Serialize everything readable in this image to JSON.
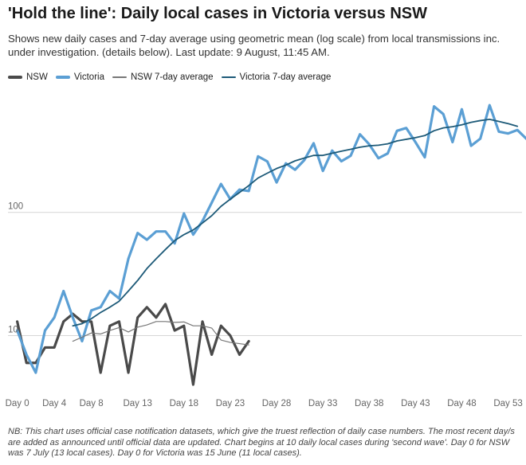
{
  "title": "'Hold the line': Daily local cases in Victoria versus NSW",
  "subtitle": "Shows new daily cases and 7-day average using geometric mean (log scale) from local transmissions inc. under investigation. (details below). Last update: 9 August, 11:45 AM.",
  "legend": {
    "nsw": "NSW",
    "victoria": "Victoria",
    "nsw_avg": "NSW 7-day average",
    "vic_avg": "Victoria 7-day average"
  },
  "colors": {
    "nsw": "#4a4a4a",
    "victoria": "#5b9fd4",
    "nsw_avg": "#777777",
    "vic_avg": "#1d5a78",
    "grid": "#d6d6d6"
  },
  "note": "NB: This chart uses official case notification datasets, which give the truest reflection of daily case numbers. The most recent day/s are added as announced until official data are updated. Chart begins at 10 daily local cases during 'second wave'. Day 0 for NSW was 7 July (13 local cases). Day 0 for Victoria was 15 June (11 local cases).",
  "chart_data": {
    "type": "line",
    "title": "'Hold the line': Daily local cases in Victoria versus NSW",
    "xlabel": "",
    "ylabel": "",
    "y_scale": "log",
    "ylim": [
      3.5,
      1000
    ],
    "xlim": [
      -1,
      54.5
    ],
    "y_ticks": [
      10,
      100
    ],
    "x_ticks": [
      {
        "value": 0,
        "label": "Day 0"
      },
      {
        "value": 4,
        "label": "Day 4"
      },
      {
        "value": 8,
        "label": "Day 8"
      },
      {
        "value": 13,
        "label": "Day 13"
      },
      {
        "value": 18,
        "label": "Day 18"
      },
      {
        "value": 23,
        "label": "Day 23"
      },
      {
        "value": 28,
        "label": "Day 28"
      },
      {
        "value": 33,
        "label": "Day 33"
      },
      {
        "value": 38,
        "label": "Day 38"
      },
      {
        "value": 43,
        "label": "Day 43"
      },
      {
        "value": 48,
        "label": "Day 48"
      },
      {
        "value": 53,
        "label": "Day 53"
      }
    ],
    "grid": "horizontal",
    "legend_position": "top-left",
    "series": [
      {
        "name": "NSW",
        "key": "nsw",
        "width": 3.2,
        "values": [
          13,
          6,
          6,
          8,
          8,
          13,
          15,
          13,
          13,
          5,
          12,
          13,
          5,
          14,
          17,
          14,
          18,
          11,
          12,
          4,
          13,
          7,
          12,
          10,
          7,
          9
        ]
      },
      {
        "name": "Victoria",
        "key": "victoria",
        "width": 3.2,
        "values": [
          11,
          7,
          5,
          11,
          14,
          23,
          14,
          9,
          16,
          17,
          23,
          20,
          42,
          68,
          60,
          70,
          70,
          56,
          98,
          66,
          85,
          120,
          170,
          128,
          153,
          149,
          285,
          259,
          175,
          250,
          222,
          266,
          364,
          217,
          317,
          260,
          288,
          430,
          357,
          275,
          301,
          459,
          484,
          371,
          280,
          725,
          628,
          372,
          687,
          347,
          397,
          741,
          452,
          437,
          466,
          394
        ]
      },
      {
        "name": "NSW 7-day average",
        "key": "nsw_avg",
        "width": 1.2,
        "values": [
          null,
          null,
          null,
          null,
          null,
          null,
          9,
          9.7,
          10.5,
          10.3,
          11,
          11.6,
          10.7,
          11.7,
          12.2,
          13,
          13,
          12.8,
          12.9,
          12,
          12,
          11.5,
          9.2,
          8.8,
          8.6,
          8.4
        ]
      },
      {
        "name": "Victoria 7-day average",
        "key": "vic_avg",
        "width": 1.8,
        "values": [
          null,
          null,
          null,
          null,
          null,
          null,
          12,
          12.5,
          13.7,
          15.4,
          17,
          19,
          23,
          28,
          35,
          42,
          50,
          59,
          66,
          72,
          82,
          94,
          112,
          128,
          145,
          165,
          190,
          208,
          227,
          242,
          262,
          276,
          290,
          290,
          302,
          314,
          325,
          338,
          347,
          351,
          360,
          380,
          392,
          404,
          420,
          460,
          485,
          496,
          514,
          538,
          556,
          569,
          547,
          525,
          500,
          null
        ]
      }
    ]
  }
}
